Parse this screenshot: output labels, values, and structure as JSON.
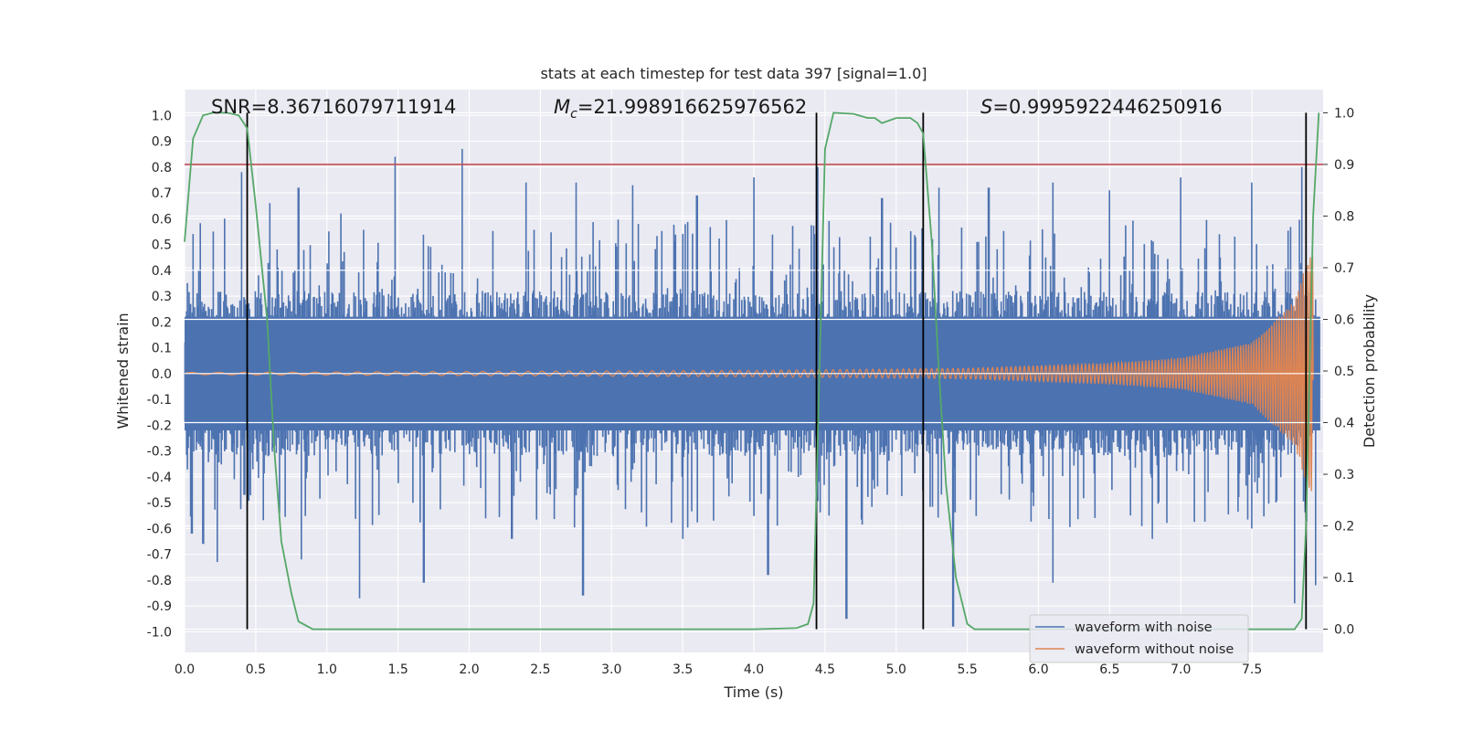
{
  "chart_data": {
    "type": "line",
    "title": "stats at each timestep for test data 397 [signal=1.0]",
    "xlabel": "Time (s)",
    "ylabel": "Whitened strain",
    "y2label": "Detection probability",
    "xlim": [
      0.0,
      8.0
    ],
    "ylim": [
      -1.08,
      1.1
    ],
    "y2lim": [
      -0.045,
      1.045
    ],
    "xticks": [
      "0.0",
      "0.5",
      "1.0",
      "1.5",
      "2.0",
      "2.5",
      "3.0",
      "3.5",
      "4.0",
      "4.5",
      "5.0",
      "5.5",
      "6.0",
      "6.5",
      "7.0",
      "7.5"
    ],
    "yticks": [
      "1.0",
      "0.9",
      "0.8",
      "0.7",
      "0.6",
      "0.5",
      "0.4",
      "0.3",
      "0.2",
      "0.1",
      "0.0",
      "-0.1",
      "-0.2",
      "-0.3",
      "-0.4",
      "-0.5",
      "-0.6",
      "-0.7",
      "-0.8",
      "-0.9",
      "-1.0"
    ],
    "y2ticks": [
      "0.0",
      "0.1",
      "0.2",
      "0.3",
      "0.4",
      "0.5",
      "0.6",
      "0.7",
      "0.8",
      "0.9",
      "1.0"
    ],
    "grid": true,
    "legend_position": "lower-right",
    "annotations": {
      "snr": "SNR=8.36716079711914",
      "mc_symbol": "M",
      "mc_sub": "c",
      "mc_value": "=21.998916625976562",
      "s_symbol": "S",
      "s_value": "=0.9995922446250916"
    },
    "threshold_line": {
      "y2": 0.9,
      "color": "#c44e52"
    },
    "vertical_lines_x": [
      0.44,
      4.44,
      5.19,
      7.88
    ],
    "series": [
      {
        "name": "waveform with noise",
        "color": "#4c72b0",
        "description_kind": "noisy strain",
        "envelope_peaks_pos": [
          [
            0.02,
            0.35
          ],
          [
            0.1,
            0.4
          ],
          [
            0.2,
            0.55
          ],
          [
            0.28,
            0.6
          ],
          [
            0.4,
            0.78
          ],
          [
            0.6,
            0.66
          ],
          [
            0.8,
            0.72
          ],
          [
            1.1,
            0.62
          ],
          [
            1.48,
            0.84
          ],
          [
            1.95,
            0.87
          ],
          [
            2.4,
            0.74
          ],
          [
            2.75,
            0.74
          ],
          [
            3.15,
            0.73
          ],
          [
            3.6,
            0.69
          ],
          [
            4.0,
            0.76
          ],
          [
            4.45,
            0.8
          ],
          [
            4.9,
            0.68
          ],
          [
            5.3,
            0.72
          ],
          [
            5.65,
            0.72
          ],
          [
            6.1,
            0.74
          ],
          [
            6.5,
            0.71
          ],
          [
            7.0,
            0.76
          ],
          [
            7.5,
            0.74
          ],
          [
            7.85,
            0.8
          ]
        ],
        "envelope_peaks_neg": [
          [
            0.05,
            -0.62
          ],
          [
            0.13,
            -0.66
          ],
          [
            0.23,
            -0.73
          ],
          [
            0.42,
            -0.47
          ],
          [
            0.82,
            -0.72
          ],
          [
            1.23,
            -0.87
          ],
          [
            1.68,
            -0.81
          ],
          [
            2.3,
            -0.64
          ],
          [
            2.8,
            -0.86
          ],
          [
            3.5,
            -0.64
          ],
          [
            4.1,
            -0.78
          ],
          [
            4.65,
            -0.95
          ],
          [
            5.4,
            -0.98
          ],
          [
            6.1,
            -0.81
          ],
          [
            6.8,
            -0.64
          ],
          [
            7.5,
            -0.6
          ],
          [
            7.8,
            -0.89
          ],
          [
            7.95,
            -0.82
          ]
        ]
      },
      {
        "name": "waveform without noise",
        "color": "#dd8452",
        "description_kind": "chirp",
        "amplitude_at": [
          [
            0.0,
            0.004
          ],
          [
            4.0,
            0.012
          ],
          [
            5.5,
            0.02
          ],
          [
            6.5,
            0.04
          ],
          [
            7.0,
            0.06
          ],
          [
            7.5,
            0.12
          ],
          [
            7.8,
            0.28
          ],
          [
            7.9,
            0.46
          ]
        ]
      },
      {
        "name": "Detection probability",
        "color": "#55a868",
        "axis": "right",
        "x": [
          0.0,
          0.06,
          0.13,
          0.2,
          0.3,
          0.38,
          0.44,
          0.5,
          0.58,
          0.63,
          0.68,
          0.75,
          0.8,
          0.9,
          1.5,
          3.0,
          4.0,
          4.3,
          4.38,
          4.42,
          4.45,
          4.5,
          4.56,
          4.7,
          4.8,
          4.85,
          4.9,
          5.0,
          5.1,
          5.15,
          5.19,
          5.25,
          5.3,
          5.35,
          5.42,
          5.5,
          5.55,
          5.7,
          6.0,
          7.0,
          7.5,
          7.8,
          7.85,
          7.88,
          7.93,
          7.97
        ],
        "values": [
          0.75,
          0.95,
          0.995,
          1.0,
          1.0,
          0.995,
          0.97,
          0.82,
          0.6,
          0.35,
          0.17,
          0.07,
          0.015,
          0.0,
          0.0,
          0.0,
          0.0,
          0.002,
          0.01,
          0.05,
          0.38,
          0.93,
          1.0,
          0.998,
          0.99,
          0.99,
          0.98,
          0.99,
          0.99,
          0.98,
          0.96,
          0.75,
          0.5,
          0.28,
          0.1,
          0.01,
          0.0,
          0.0,
          0.0,
          0.0,
          0.0,
          0.0,
          0.02,
          0.2,
          0.8,
          1.0
        ]
      }
    ]
  }
}
